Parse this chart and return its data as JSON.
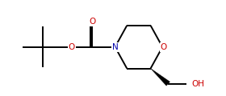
{
  "bg_color": "#ffffff",
  "bond_color": "#000000",
  "atom_colors": {
    "O": "#cc0000",
    "N": "#0000aa",
    "C": "#000000"
  },
  "line_width": 1.4,
  "figsize": [
    2.8,
    1.2
  ],
  "dpi": 100,
  "xlim": [
    0,
    10
  ],
  "ylim": [
    -0.5,
    4.2
  ]
}
